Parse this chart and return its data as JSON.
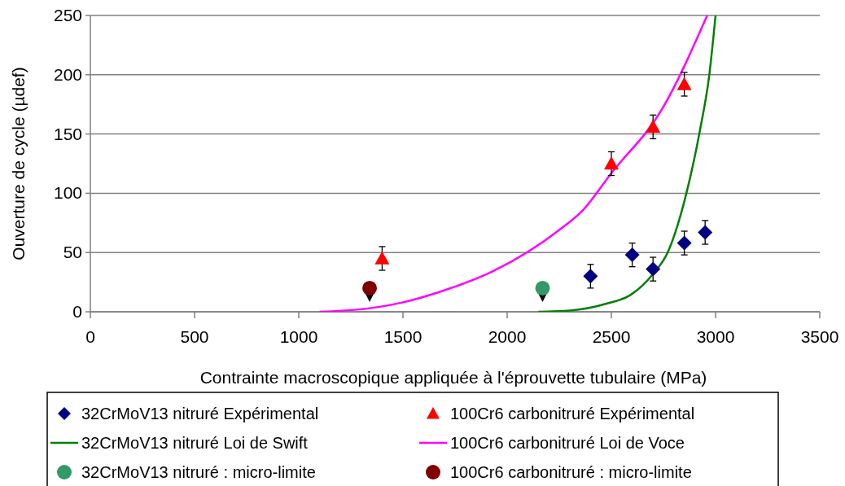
{
  "chart_data": {
    "type": "scatter",
    "xlabel": "Contrainte macroscopique appliquée à l'éprouvette tubulaire (MPa)",
    "ylabel": "Ouverture de cycle (µdef)",
    "xlim": [
      0,
      3500
    ],
    "xticks": [
      0,
      500,
      1000,
      1500,
      2000,
      2500,
      3000,
      3500
    ],
    "ylim": [
      0,
      250
    ],
    "yticks": [
      0,
      50,
      100,
      150,
      200,
      250
    ],
    "grid": "y",
    "legend": "bottom",
    "series": [
      {
        "name": "32CrMoV13 nitruré Expérimental",
        "type": "scatter",
        "marker": "diamond",
        "color": "#000080",
        "x": [
          2400,
          2600,
          2700,
          2850,
          2950
        ],
        "values": [
          30,
          48,
          36,
          58,
          67
        ],
        "errors": [
          10,
          10,
          10,
          10,
          10
        ]
      },
      {
        "name": "100Cr6 carbonitruré Expérimental",
        "type": "scatter",
        "marker": "triangle",
        "color": "#ff0000",
        "x": [
          1400,
          2500,
          2700,
          2850
        ],
        "values": [
          45,
          125,
          156,
          192
        ],
        "errors": [
          10,
          10,
          10,
          10
        ]
      },
      {
        "name": "32CrMoV13 nitruré Loi de Swift",
        "type": "line",
        "marker": "none",
        "color": "#008000",
        "x": [
          2150,
          2300,
          2480,
          2590,
          2700,
          2770,
          2860,
          2925,
          2970,
          3000
        ],
        "values": [
          0,
          1,
          7,
          14,
          32,
          50,
          100,
          153,
          200,
          250
        ]
      },
      {
        "name": "100Cr6 carbonitruré Loi de Voce",
        "type": "line",
        "marker": "none",
        "color": "#ff00ff",
        "x": [
          1100,
          1340,
          1500,
          1680,
          1930,
          2250,
          2360,
          2500,
          2740,
          2960
        ],
        "values": [
          0,
          3,
          8,
          17,
          34,
          69,
          85,
          117,
          170,
          250
        ]
      },
      {
        "name": "32CrMoV13 nitruré : micro-limite",
        "type": "scatter",
        "marker": "circle",
        "color": "#339966",
        "x": [
          2170
        ],
        "values": [
          20
        ]
      },
      {
        "name": "100Cr6 carbonitruré : micro-limite",
        "type": "scatter",
        "marker": "circle",
        "color": "#800000",
        "x": [
          1340
        ],
        "values": [
          20
        ]
      }
    ]
  }
}
